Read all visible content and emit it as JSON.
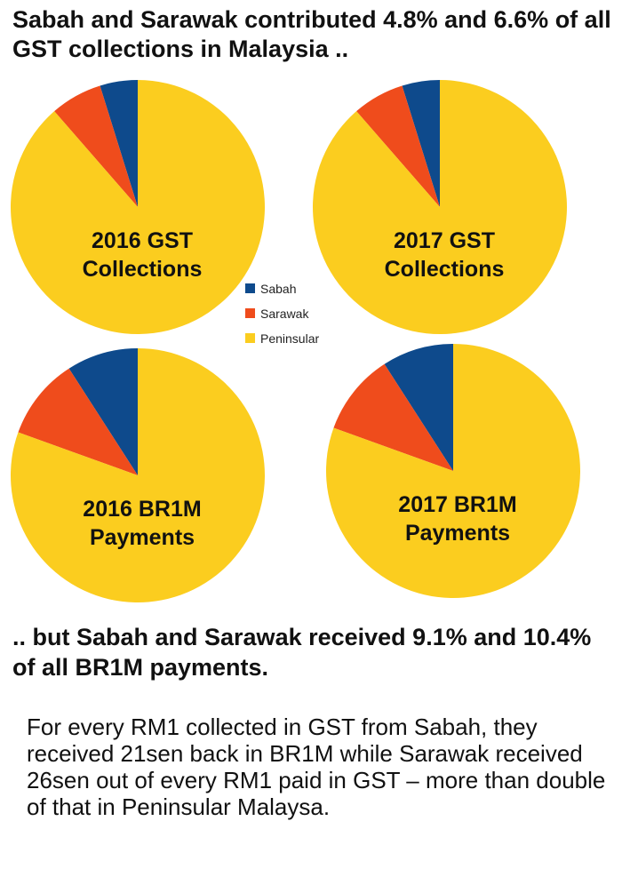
{
  "headline": "Sabah and Sarawak contributed 4.8% and 6.6% of all GST collections in Malaysia ..",
  "subheadline": ".. but Sabah and Sarawak received 9.1% and 10.4% of all BR1M payments.",
  "footnote": "For every RM1 collected in GST from Sabah, they received 21sen back in BR1M while Sarawak received 26sen out of every RM1 paid in GST – more than double of that in Peninsular Malaysa.",
  "colors": {
    "Sabah": "#0e4a8c",
    "Sarawak": "#ef4c1c",
    "Peninsular": "#fbcd1f"
  },
  "legend": {
    "placement": "center",
    "items": [
      "Sabah",
      "Sarawak",
      "Peninsular"
    ]
  },
  "chart_data": [
    {
      "type": "pie",
      "title_lines": [
        "2016 GST",
        "Collections"
      ],
      "labels": [
        "Sabah",
        "Sarawak",
        "Peninsular"
      ],
      "values": [
        4.8,
        6.6,
        88.6
      ]
    },
    {
      "type": "pie",
      "title_lines": [
        "2017 GST",
        "Collections"
      ],
      "labels": [
        "Sabah",
        "Sarawak",
        "Peninsular"
      ],
      "values": [
        4.8,
        6.6,
        88.6
      ]
    },
    {
      "type": "pie",
      "title_lines": [
        "2016 BR1M",
        "Payments"
      ],
      "labels": [
        "Sabah",
        "Sarawak",
        "Peninsular"
      ],
      "values": [
        9.1,
        10.4,
        80.5
      ]
    },
    {
      "type": "pie",
      "title_lines": [
        "2017 BR1M",
        "Payments"
      ],
      "labels": [
        "Sabah",
        "Sarawak",
        "Peninsular"
      ],
      "values": [
        9.1,
        10.4,
        80.5
      ]
    }
  ]
}
